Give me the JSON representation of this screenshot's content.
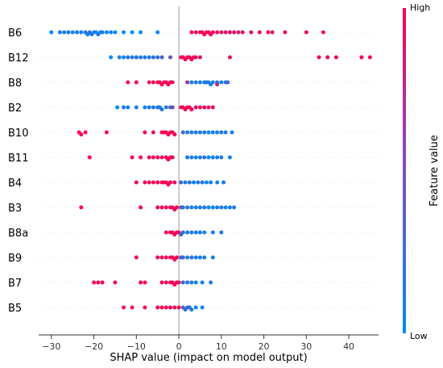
{
  "chart_data": {
    "type": "scatter",
    "subtype": "shap-beeswarm",
    "title": "",
    "xlabel": "SHAP value (impact on model output)",
    "xlim": [
      -33,
      47
    ],
    "xticks": [
      -30,
      -20,
      -10,
      0,
      10,
      20,
      30,
      40
    ],
    "features": [
      "B6",
      "B12",
      "B8",
      "B2",
      "B10",
      "B11",
      "B4",
      "B3",
      "B8a",
      "B9",
      "B7",
      "B5"
    ],
    "colorbar": {
      "title": "Feature value",
      "high": "High",
      "low": "Low"
    },
    "colors": {
      "low": "#008afb",
      "high": "#ff0052",
      "zero_line": "#999999",
      "grid": "#e6e6e6"
    },
    "series": [
      {
        "feature": "B6",
        "points": [
          [
            -30,
            0
          ],
          [
            -28,
            0.1
          ],
          [
            -27,
            0.05
          ],
          [
            -26,
            0.15
          ],
          [
            -25,
            0
          ],
          [
            -24,
            0.1
          ],
          [
            -23,
            0.05
          ],
          [
            -22,
            0.2
          ],
          [
            -21.5,
            0.05
          ],
          [
            -21,
            0.15
          ],
          [
            -20.5,
            0.1
          ],
          [
            -20,
            0.2
          ],
          [
            -19.5,
            0
          ],
          [
            -19,
            0.15
          ],
          [
            -18.5,
            0.05
          ],
          [
            -18,
            0.1
          ],
          [
            -17,
            0
          ],
          [
            -16,
            0.05
          ],
          [
            -15,
            0
          ],
          [
            -13,
            0
          ],
          [
            -11,
            0
          ],
          [
            -9,
            0
          ],
          [
            -5,
            0
          ],
          [
            3,
            1
          ],
          [
            4,
            0.9
          ],
          [
            5,
            1
          ],
          [
            5.5,
            0.95
          ],
          [
            6,
            1
          ],
          [
            6.5,
            0.9
          ],
          [
            7,
            1
          ],
          [
            7.5,
            0.95
          ],
          [
            8,
            0.9
          ],
          [
            9,
            1
          ],
          [
            10,
            0.85
          ],
          [
            11,
            0.9
          ],
          [
            12,
            0.85
          ],
          [
            13,
            0.9
          ],
          [
            14,
            0.8
          ],
          [
            15,
            0.9
          ],
          [
            17,
            0.85
          ],
          [
            19,
            0.9
          ],
          [
            21,
            0.85
          ],
          [
            22,
            0.9
          ],
          [
            25,
            0.9
          ],
          [
            30,
            0.95
          ],
          [
            34,
            0.95
          ]
        ]
      },
      {
        "feature": "B12",
        "points": [
          [
            -16,
            0
          ],
          [
            -14,
            0.1
          ],
          [
            -13,
            0.05
          ],
          [
            -12,
            0.15
          ],
          [
            -11,
            0.1
          ],
          [
            -10,
            0.2
          ],
          [
            -9,
            0.05
          ],
          [
            -8,
            0.15
          ],
          [
            -7,
            0.1
          ],
          [
            -6,
            0.2
          ],
          [
            -5,
            0.15
          ],
          [
            -4,
            0.3
          ],
          [
            -2,
            0.35
          ],
          [
            0.5,
            0.9
          ],
          [
            1,
            1
          ],
          [
            1.5,
            0.95
          ],
          [
            2,
            1
          ],
          [
            2.5,
            0.9
          ],
          [
            3,
            1
          ],
          [
            3.5,
            0.95
          ],
          [
            4,
            0.9
          ],
          [
            5,
            0.85
          ],
          [
            12,
            0.9
          ],
          [
            33,
            0.95
          ],
          [
            35,
            0.95
          ],
          [
            37,
            0.95
          ],
          [
            43,
            1
          ],
          [
            45,
            1
          ]
        ]
      },
      {
        "feature": "B8",
        "points": [
          [
            -12,
            1
          ],
          [
            -10,
            0.95
          ],
          [
            -7,
            0.95
          ],
          [
            -6,
            0.9
          ],
          [
            -5,
            1
          ],
          [
            -4.5,
            0.95
          ],
          [
            -4,
            1
          ],
          [
            -3.5,
            0.95
          ],
          [
            -3,
            1
          ],
          [
            -2.5,
            0.9
          ],
          [
            -2,
            1
          ],
          [
            -1.5,
            0.9
          ],
          [
            3,
            0.1
          ],
          [
            4,
            0.15
          ],
          [
            5,
            0.05
          ],
          [
            6,
            0.1
          ],
          [
            6.5,
            0.2
          ],
          [
            7,
            0
          ],
          [
            7.5,
            0.1
          ],
          [
            8,
            0.15
          ],
          [
            9,
            0.1
          ],
          [
            10,
            0.05
          ],
          [
            11,
            0.1
          ],
          [
            11.5,
            0.3
          ],
          [
            9,
            0.7
          ],
          [
            2,
            0.6
          ]
        ]
      },
      {
        "feature": "B2",
        "points": [
          [
            -14.5,
            0
          ],
          [
            -13,
            0.1
          ],
          [
            -12,
            0.05
          ],
          [
            -10,
            0.1
          ],
          [
            -8,
            0.05
          ],
          [
            -7,
            0.15
          ],
          [
            -6,
            0.1
          ],
          [
            -5,
            0.2
          ],
          [
            -4.5,
            0.05
          ],
          [
            -4,
            0.15
          ],
          [
            -3,
            0.1
          ],
          [
            -2,
            0.35
          ],
          [
            -1.5,
            0.4
          ],
          [
            0.5,
            0.9
          ],
          [
            1,
            1
          ],
          [
            1.5,
            0.95
          ],
          [
            2,
            1
          ],
          [
            2.5,
            0.9
          ],
          [
            3,
            1
          ],
          [
            4,
            0.95
          ],
          [
            5,
            0.9
          ],
          [
            6,
            0.95
          ],
          [
            7,
            0.9
          ],
          [
            8,
            0.9
          ]
        ]
      },
      {
        "feature": "B10",
        "points": [
          [
            -23.5,
            1
          ],
          [
            -23,
            0.95
          ],
          [
            -22,
            1
          ],
          [
            -17,
            0.95
          ],
          [
            -8,
            0.95
          ],
          [
            -6,
            0.9
          ],
          [
            -4,
            1
          ],
          [
            -3.5,
            0.95
          ],
          [
            -3,
            1
          ],
          [
            -2.5,
            0.95
          ],
          [
            -2,
            1
          ],
          [
            -1.5,
            0.9
          ],
          [
            -1,
            0.95
          ],
          [
            1,
            0.25
          ],
          [
            2,
            0.1
          ],
          [
            3,
            0.15
          ],
          [
            4,
            0.05
          ],
          [
            5,
            0.1
          ],
          [
            6,
            0.15
          ],
          [
            7,
            0
          ],
          [
            8,
            0.1
          ],
          [
            9,
            0.05
          ],
          [
            10,
            0.15
          ],
          [
            11,
            0.1
          ],
          [
            12.5,
            0.1
          ]
        ]
      },
      {
        "feature": "B11",
        "points": [
          [
            -21,
            1
          ],
          [
            -11,
            0.95
          ],
          [
            -9,
            1
          ],
          [
            -7,
            0.95
          ],
          [
            -6,
            0.9
          ],
          [
            -5,
            1
          ],
          [
            -4,
            0.95
          ],
          [
            -3,
            1
          ],
          [
            -2.5,
            0.95
          ],
          [
            -2,
            1
          ],
          [
            -1.5,
            0.9
          ],
          [
            2,
            0.1
          ],
          [
            3,
            0.15
          ],
          [
            4,
            0.05
          ],
          [
            5,
            0.1
          ],
          [
            6,
            0.2
          ],
          [
            7,
            0
          ],
          [
            8,
            0.1
          ],
          [
            9,
            0.05
          ],
          [
            10,
            0.15
          ],
          [
            12,
            0.05
          ]
        ]
      },
      {
        "feature": "B4",
        "points": [
          [
            -10,
            1
          ],
          [
            -8,
            0.95
          ],
          [
            -7,
            0.9
          ],
          [
            -6,
            1
          ],
          [
            -5,
            0.95
          ],
          [
            -4,
            1
          ],
          [
            -3.5,
            0.95
          ],
          [
            -3,
            1
          ],
          [
            -2.5,
            0.9
          ],
          [
            -2,
            1
          ],
          [
            -1,
            0.95
          ],
          [
            0.5,
            0.25
          ],
          [
            1.5,
            0.1
          ],
          [
            2.5,
            0.15
          ],
          [
            3.5,
            0.05
          ],
          [
            4.5,
            0.1
          ],
          [
            5.5,
            0.2
          ],
          [
            6.5,
            0
          ],
          [
            7.5,
            0.1
          ],
          [
            9,
            0.05
          ],
          [
            10.5,
            0.1
          ]
        ]
      },
      {
        "feature": "B3",
        "points": [
          [
            -23,
            0.95
          ],
          [
            -9,
            0.95
          ],
          [
            -5,
            0.9
          ],
          [
            -4,
            1
          ],
          [
            -3,
            0.95
          ],
          [
            -2,
            1
          ],
          [
            -1.5,
            0.95
          ],
          [
            -1,
            0.9
          ],
          [
            -0.5,
            1
          ],
          [
            0.5,
            0.3
          ],
          [
            1,
            0.25
          ],
          [
            2,
            0.15
          ],
          [
            3,
            0.1
          ],
          [
            4,
            0.05
          ],
          [
            5,
            0.1
          ],
          [
            6,
            0.15
          ],
          [
            7,
            0
          ],
          [
            8,
            0.1
          ],
          [
            9,
            0.05
          ],
          [
            10,
            0.1
          ],
          [
            11,
            0.05
          ],
          [
            12,
            0.1
          ],
          [
            13,
            0.1
          ]
        ]
      },
      {
        "feature": "B8a",
        "points": [
          [
            -3,
            0.95
          ],
          [
            -2,
            1
          ],
          [
            -1.5,
            0.95
          ],
          [
            -1,
            1
          ],
          [
            -0.5,
            0.9
          ],
          [
            0,
            0.95
          ],
          [
            0.5,
            0.3
          ],
          [
            1,
            0.2
          ],
          [
            2,
            0.1
          ],
          [
            3,
            0.15
          ],
          [
            4,
            0.05
          ],
          [
            5,
            0.1
          ],
          [
            6,
            0.05
          ],
          [
            8,
            0.1
          ],
          [
            10,
            0.1
          ]
        ]
      },
      {
        "feature": "B9",
        "points": [
          [
            -10,
            0.95
          ],
          [
            -5,
            0.95
          ],
          [
            -4,
            0.9
          ],
          [
            -3,
            1
          ],
          [
            -2,
            0.95
          ],
          [
            -1.5,
            1
          ],
          [
            -1,
            0.9
          ],
          [
            -0.5,
            0.95
          ],
          [
            0.5,
            0.3
          ],
          [
            1,
            0.2
          ],
          [
            2,
            0.1
          ],
          [
            3,
            0.15
          ],
          [
            4,
            0.05
          ],
          [
            5,
            0.1
          ],
          [
            6,
            0.1
          ],
          [
            8,
            0.1
          ]
        ]
      },
      {
        "feature": "B7",
        "points": [
          [
            -20,
            1
          ],
          [
            -19,
            0.95
          ],
          [
            -18,
            1
          ],
          [
            -15,
            0.95
          ],
          [
            -9,
            0.95
          ],
          [
            -8,
            1
          ],
          [
            -4,
            0.95
          ],
          [
            -3,
            0.9
          ],
          [
            -2,
            1
          ],
          [
            -1.5,
            0.95
          ],
          [
            -1,
            1
          ],
          [
            -0.5,
            0.9
          ],
          [
            0,
            0.95
          ],
          [
            1,
            0.2
          ],
          [
            2,
            0.1
          ],
          [
            3,
            0.15
          ],
          [
            4,
            0.05
          ],
          [
            5.5,
            0.1
          ],
          [
            7.5,
            0.1
          ]
        ]
      },
      {
        "feature": "B5",
        "points": [
          [
            -13,
            1
          ],
          [
            -11,
            0.95
          ],
          [
            -8,
            0.95
          ],
          [
            -5,
            0.9
          ],
          [
            -4,
            1
          ],
          [
            -3,
            0.95
          ],
          [
            -2,
            0.95
          ],
          [
            -1,
            0.9
          ],
          [
            0,
            1
          ],
          [
            1,
            0.3
          ],
          [
            1.5,
            0.2
          ],
          [
            2,
            0.15
          ],
          [
            2.5,
            0.2
          ],
          [
            3,
            0.1
          ],
          [
            4,
            0.05
          ],
          [
            5.5,
            0.1
          ]
        ]
      }
    ]
  }
}
